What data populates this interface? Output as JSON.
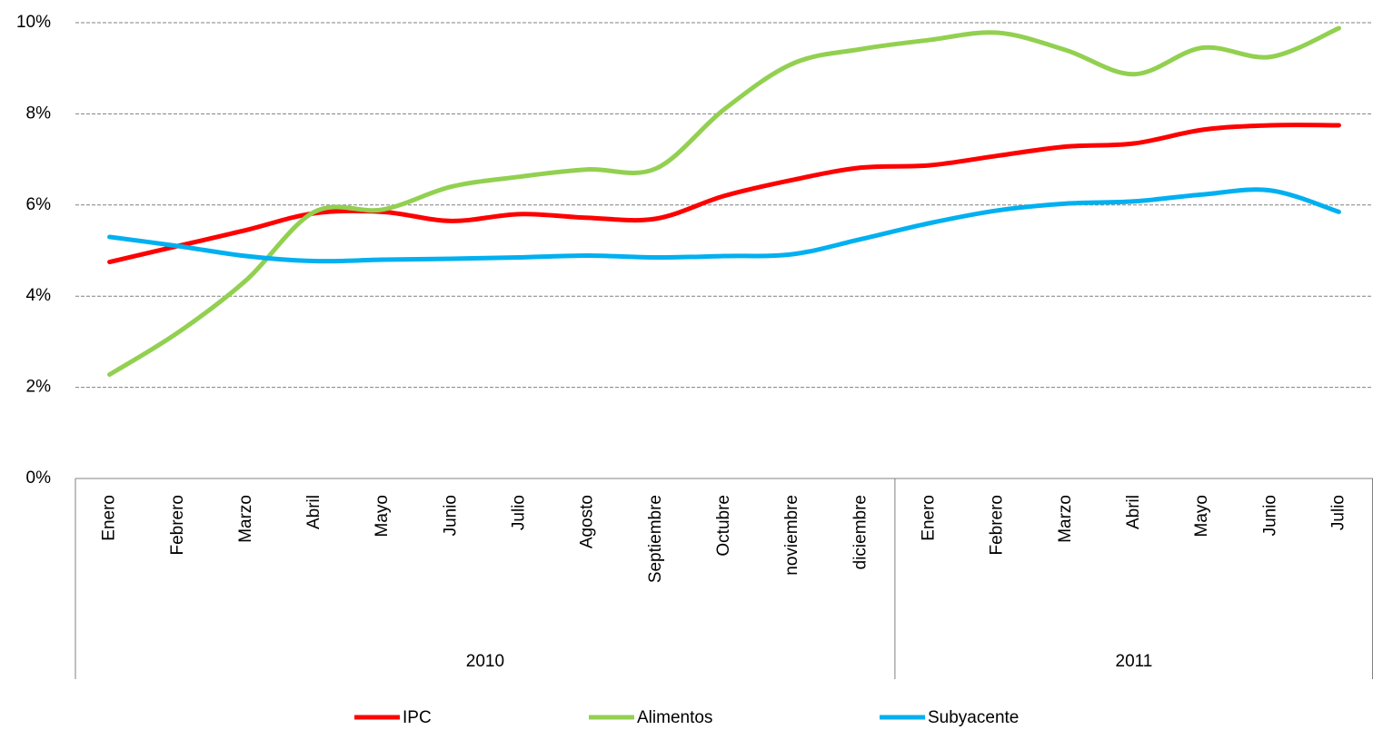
{
  "chart_data": {
    "type": "line",
    "groups": [
      {
        "label": "2010",
        "categories": [
          "Enero",
          "Febrero",
          "Marzo",
          "Abril",
          "Mayo",
          "Junio",
          "Julio",
          "Agosto",
          "Septiembre",
          "Octubre",
          "noviembre",
          "diciembre"
        ]
      },
      {
        "label": "2011",
        "categories": [
          "Enero",
          "Febrero",
          "Marzo",
          "Abril",
          "Mayo",
          "Junio",
          "Julio"
        ]
      }
    ],
    "series": [
      {
        "name": "IPC",
        "color": "#ff0000",
        "values": [
          4.75,
          5.1,
          5.45,
          5.82,
          5.85,
          5.65,
          5.8,
          5.72,
          5.7,
          6.2,
          6.55,
          6.82,
          6.87,
          7.08,
          7.28,
          7.35,
          7.65,
          7.75,
          7.75
        ]
      },
      {
        "name": "Alimentos",
        "color": "#92d050",
        "values": [
          2.28,
          3.2,
          4.35,
          5.85,
          5.9,
          6.4,
          6.62,
          6.78,
          6.8,
          8.1,
          9.1,
          9.42,
          9.62,
          9.78,
          9.4,
          8.87,
          9.45,
          9.25,
          9.88
        ]
      },
      {
        "name": "Subyacente",
        "color": "#00b0f0",
        "values": [
          5.3,
          5.1,
          4.88,
          4.77,
          4.8,
          4.82,
          4.85,
          4.89,
          4.85,
          4.88,
          4.92,
          5.25,
          5.6,
          5.88,
          6.03,
          6.08,
          6.23,
          6.32,
          5.85
        ]
      }
    ],
    "ylim": [
      0,
      10
    ],
    "yticks": [
      {
        "value": 0,
        "label": "0%"
      },
      {
        "value": 2,
        "label": "2%"
      },
      {
        "value": 4,
        "label": "4%"
      },
      {
        "value": 6,
        "label": "6%"
      },
      {
        "value": 8,
        "label": "8%"
      },
      {
        "value": 10,
        "label": "10%"
      }
    ],
    "grid": true,
    "legend": "bottom"
  }
}
